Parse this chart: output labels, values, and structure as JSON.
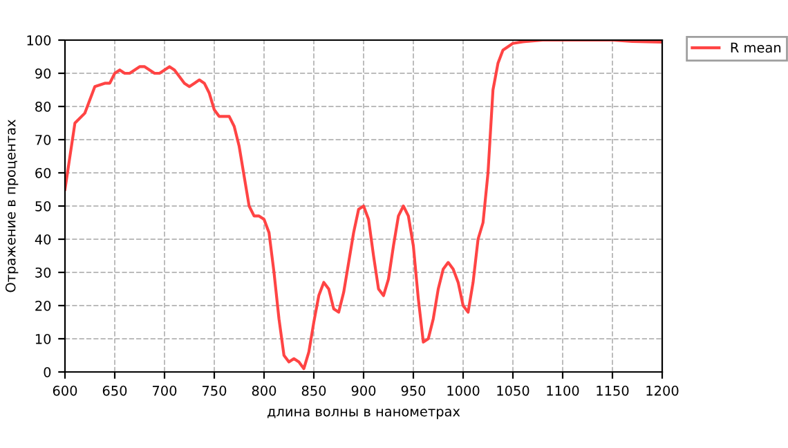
{
  "chart_data": {
    "type": "line",
    "xlabel": "длина волны в нанометрах",
    "ylabel": "Отражение в процентах",
    "x": [
      600,
      605,
      610,
      620,
      630,
      640,
      645,
      650,
      655,
      660,
      665,
      670,
      675,
      680,
      690,
      695,
      700,
      705,
      710,
      720,
      725,
      730,
      735,
      740,
      745,
      750,
      755,
      760,
      765,
      770,
      775,
      780,
      785,
      790,
      795,
      800,
      805,
      810,
      815,
      820,
      825,
      830,
      835,
      840,
      845,
      850,
      855,
      860,
      865,
      870,
      875,
      880,
      885,
      890,
      895,
      900,
      905,
      910,
      915,
      920,
      925,
      930,
      935,
      940,
      945,
      950,
      955,
      960,
      965,
      970,
      975,
      980,
      985,
      990,
      995,
      1000,
      1005,
      1010,
      1015,
      1020,
      1025,
      1030,
      1035,
      1040,
      1050,
      1060,
      1080,
      1150,
      1170,
      1200
    ],
    "series": [
      {
        "name": "R mean",
        "color": "#ff4444",
        "values": [
          55,
          65,
          75,
          78,
          86,
          87,
          87,
          90,
          91,
          90,
          90,
          91,
          92,
          92,
          90,
          90,
          91,
          92,
          91,
          87,
          86,
          87,
          88,
          87,
          84,
          79,
          77,
          77,
          77,
          74,
          68,
          59,
          50,
          47,
          47,
          46,
          42,
          30,
          16,
          5,
          3,
          4,
          3,
          1,
          6,
          15,
          23,
          27,
          25,
          19,
          18,
          24,
          33,
          42,
          49,
          50,
          46,
          35,
          25,
          23,
          28,
          38,
          47,
          50,
          47,
          38,
          22,
          9,
          10,
          16,
          25,
          31,
          33,
          31,
          27,
          20,
          18,
          27,
          40,
          45,
          60,
          85,
          93,
          97,
          99,
          99.5,
          100,
          100,
          99.6,
          99.4
        ]
      }
    ],
    "xlim": [
      600,
      1200
    ],
    "ylim": [
      0,
      100
    ],
    "xticks": [
      600,
      650,
      700,
      750,
      800,
      850,
      900,
      950,
      1000,
      1050,
      1100,
      1150,
      1200
    ],
    "yticks": [
      0,
      10,
      20,
      30,
      40,
      50,
      60,
      70,
      80,
      90,
      100
    ],
    "grid": true,
    "legend": "top right",
    "marker": "none",
    "line_style": "solid"
  }
}
